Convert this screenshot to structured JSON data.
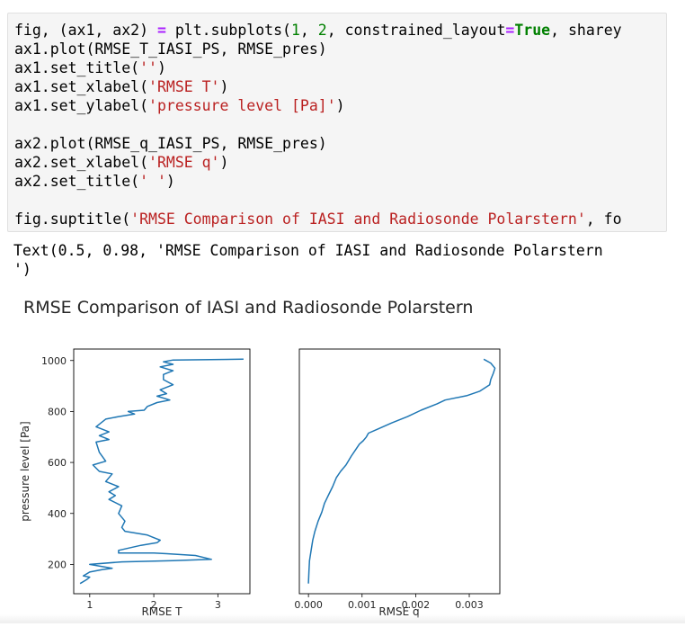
{
  "code_cell": {
    "lines": [
      [
        {
          "t": "fig, (ax1, ax2) ",
          "c": ""
        },
        {
          "t": "=",
          "c": "op"
        },
        {
          "t": " plt.subplots(",
          "c": ""
        },
        {
          "t": "1",
          "c": "num"
        },
        {
          "t": ", ",
          "c": ""
        },
        {
          "t": "2",
          "c": "num"
        },
        {
          "t": ", constrained_layout",
          "c": ""
        },
        {
          "t": "=",
          "c": "op"
        },
        {
          "t": "True",
          "c": "kw"
        },
        {
          "t": ", sharey",
          "c": ""
        }
      ],
      [
        {
          "t": "ax1.plot(RMSE_T_IASI_PS, RMSE_pres)",
          "c": ""
        }
      ],
      [
        {
          "t": "ax1.set_title(",
          "c": ""
        },
        {
          "t": "''",
          "c": "str"
        },
        {
          "t": ")",
          "c": ""
        }
      ],
      [
        {
          "t": "ax1.set_xlabel(",
          "c": ""
        },
        {
          "t": "'RMSE T'",
          "c": "str"
        },
        {
          "t": ")",
          "c": ""
        }
      ],
      [
        {
          "t": "ax1.set_ylabel(",
          "c": ""
        },
        {
          "t": "'pressure level [Pa]'",
          "c": "str"
        },
        {
          "t": ")",
          "c": ""
        }
      ],
      [
        {
          "t": "",
          "c": ""
        }
      ],
      [
        {
          "t": "ax2.plot(RMSE_q_IASI_PS, RMSE_pres)",
          "c": ""
        }
      ],
      [
        {
          "t": "ax2.set_xlabel(",
          "c": ""
        },
        {
          "t": "'RMSE q'",
          "c": "str"
        },
        {
          "t": ")",
          "c": ""
        }
      ],
      [
        {
          "t": "ax2.set_title(",
          "c": ""
        },
        {
          "t": "' '",
          "c": "str"
        },
        {
          "t": ")",
          "c": ""
        }
      ],
      [
        {
          "t": "",
          "c": ""
        }
      ],
      [
        {
          "t": "fig.suptitle(",
          "c": ""
        },
        {
          "t": "'RMSE Comparison of IASI and Radiosonde Polarstern'",
          "c": "str"
        },
        {
          "t": ", fo",
          "c": ""
        }
      ]
    ]
  },
  "output": {
    "text": "Text(0.5, 0.98, 'RMSE Comparison of IASI and Radiosonde Polarstern\n')"
  },
  "colors": {
    "line": "#1f77b4",
    "string": "#ba2121",
    "keyword": "#008000",
    "operator": "#aa22ff",
    "cell_bg": "#f5f5f5"
  },
  "chart_data": [
    {
      "type": "line",
      "title": "",
      "suptitle": "RMSE Comparison of IASI and Radiosonde Polarstern",
      "xlabel": "RMSE T",
      "ylabel": "pressure level [Pa]",
      "xlim": [
        0.75,
        3.5
      ],
      "ylim": [
        85,
        1045
      ],
      "xticks": [
        "1",
        "2",
        "3"
      ],
      "yticks": [
        "200",
        "400",
        "600",
        "800",
        "1000"
      ],
      "grid": false,
      "series": [
        {
          "x": [
            3.4,
            2.3,
            2.15,
            2.3,
            2.1,
            2.3,
            2.15,
            2.15,
            2.3,
            2.1,
            2.2,
            2.05,
            2.25,
            2.05,
            1.9,
            1.85,
            1.6,
            1.7,
            1.45,
            1.25,
            1.1,
            1.3,
            1.15,
            1.3,
            1.1,
            1.15,
            1.25,
            1.05,
            1.15,
            1.35,
            1.25,
            1.45,
            1.3,
            1.4,
            1.3,
            1.5,
            1.45,
            1.55,
            1.5,
            1.55,
            1.9,
            2.0,
            2.1,
            2.05,
            1.8,
            1.45,
            1.45,
            2.0,
            2.2,
            2.65,
            2.9,
            2.3,
            1.5,
            1.0,
            1.35,
            1.2,
            1.0,
            0.9,
            1.0,
            0.95,
            0.85
          ],
          "y": [
            1005,
            1002,
            995,
            985,
            975,
            960,
            945,
            925,
            905,
            885,
            870,
            860,
            845,
            835,
            820,
            805,
            800,
            790,
            780,
            770,
            740,
            720,
            705,
            690,
            680,
            640,
            605,
            590,
            565,
            555,
            525,
            505,
            485,
            470,
            455,
            430,
            400,
            370,
            345,
            330,
            315,
            305,
            295,
            285,
            275,
            255,
            245,
            245,
            242,
            235,
            220,
            215,
            210,
            200,
            185,
            180,
            170,
            155,
            150,
            140,
            125
          ]
        }
      ]
    },
    {
      "type": "line",
      "title": " ",
      "xlabel": "RMSE q",
      "ylabel": "",
      "xlim": [
        -0.00017,
        0.00357
      ],
      "ylim": [
        85,
        1045
      ],
      "xticks": [
        "0.000",
        "0.001",
        "0.002",
        "0.003"
      ],
      "grid": false,
      "series": [
        {
          "x": [
            0.00327,
            0.0034,
            0.00348,
            0.00345,
            0.0034,
            0.00338,
            0.0032,
            0.00295,
            0.00255,
            0.0024,
            0.0021,
            0.00185,
            0.00155,
            0.00128,
            0.00112,
            0.00108,
            0.00102,
            0.00095,
            0.00088,
            0.0008,
            0.0007,
            0.0006,
            0.00052,
            0.00045,
            0.00038,
            0.0003,
            0.00025,
            0.00018,
            0.00012,
            8e-05,
            5e-05,
            2e-05,
            1e-05,
            0.0
          ],
          "y": [
            1005,
            990,
            970,
            950,
            925,
            905,
            880,
            862,
            845,
            830,
            805,
            780,
            755,
            730,
            715,
            700,
            685,
            672,
            650,
            625,
            590,
            565,
            540,
            505,
            475,
            440,
            405,
            370,
            330,
            295,
            255,
            215,
            175,
            125
          ]
        }
      ]
    }
  ]
}
